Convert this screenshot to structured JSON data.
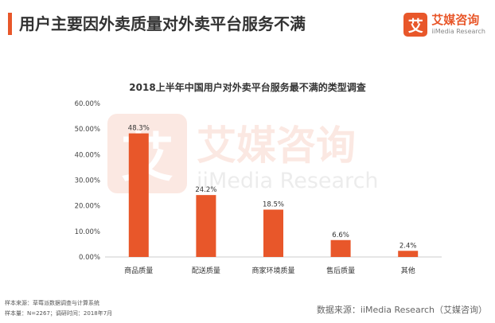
{
  "header": {
    "title": "用户主要因外卖质量对外卖平台服务不满",
    "accent_color": "#E8572A"
  },
  "logo": {
    "glyph": "艾",
    "name_cn": "艾媒咨询",
    "name_en": "iiMedia Research",
    "color": "#E8572A"
  },
  "watermark": {
    "glyph": "艾",
    "name_cn": "艾媒咨询",
    "name_en": "iiMedia Research"
  },
  "chart_data": {
    "type": "bar",
    "title": "2018上半年中国用户对外卖平台服务最不满的类型调查",
    "categories": [
      "商品质量",
      "配送质量",
      "商家环境质量",
      "售后质量",
      "其他"
    ],
    "values": [
      48.3,
      24.2,
      18.5,
      6.6,
      2.4
    ],
    "value_labels": [
      "48.3%",
      "24.2%",
      "18.5%",
      "6.6%",
      "2.4%"
    ],
    "y_ticks": [
      "0.00%",
      "10.00%",
      "20.00%",
      "30.00%",
      "40.00%",
      "50.00%",
      "60.00%"
    ],
    "ylim": [
      0,
      60
    ],
    "bar_color": "#E8572A",
    "grid": false,
    "legend": "none"
  },
  "footer": {
    "sample_source": "样本来源：草莓派数据调查与计算系统",
    "sample_info": "样本量：N=2267；调研时间：2018年7月",
    "data_source": "数据来源：iiMedia Research（艾媒咨询）"
  }
}
